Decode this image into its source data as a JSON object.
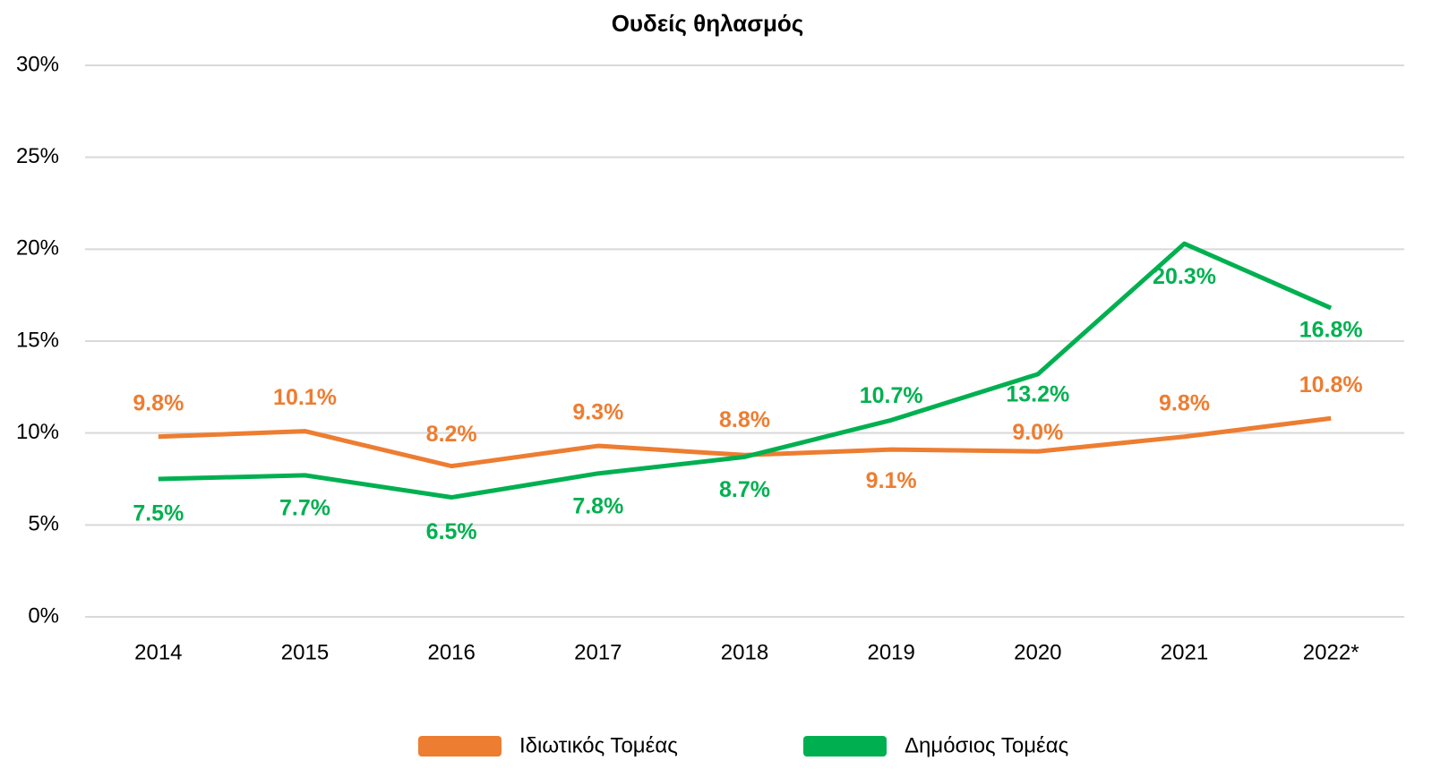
{
  "chart_data": {
    "type": "line",
    "title": "Ουδείς θηλασμός",
    "categories": [
      "2014",
      "2015",
      "2016",
      "2017",
      "2018",
      "2019",
      "2020",
      "2021",
      "2022*"
    ],
    "series": [
      {
        "name": "Ιδιωτικός Τομέας",
        "color": "#ed7d31",
        "values": [
          9.8,
          10.1,
          8.2,
          9.3,
          8.8,
          9.1,
          9.0,
          9.8,
          10.8
        ],
        "value_labels": [
          "9.8%",
          "10.1%",
          "8.2%",
          "9.3%",
          "8.8%",
          "9.1%",
          "9.0%",
          "9.8%",
          "10.8%"
        ]
      },
      {
        "name": "Δημόσιος Τομέας",
        "color": "#00b050",
        "values": [
          7.5,
          7.7,
          6.5,
          7.8,
          8.7,
          10.7,
          13.2,
          20.3,
          16.8
        ],
        "value_labels": [
          "7.5%",
          "7.7%",
          "6.5%",
          "7.8%",
          "8.7%",
          "10.7%",
          "13.2%",
          "20.3%",
          "16.8%"
        ]
      }
    ],
    "ylim": [
      0,
      30
    ],
    "yticks": [
      {
        "value": 0,
        "label": "0%"
      },
      {
        "value": 5,
        "label": "5%"
      },
      {
        "value": 10,
        "label": "10%"
      },
      {
        "value": 15,
        "label": "15%"
      },
      {
        "value": 20,
        "label": "20%"
      },
      {
        "value": 25,
        "label": "25%"
      },
      {
        "value": 30,
        "label": "30%"
      }
    ],
    "grid": true,
    "legend": "bottom"
  }
}
